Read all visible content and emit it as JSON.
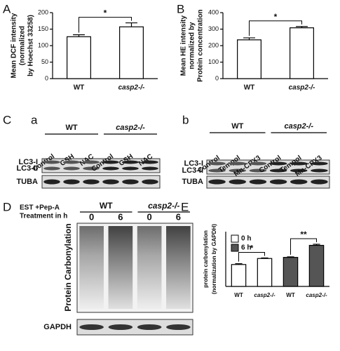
{
  "panel_labels": [
    "A",
    "B",
    "C",
    "a",
    "b",
    "D",
    "E"
  ],
  "chart_data": [
    {
      "type": "bar",
      "ylabel": [
        "Mean DCF intensity",
        "(normalized",
        "by Hoechst 33258)"
      ],
      "categories": [
        "WT",
        "casp2-/-"
      ],
      "values": [
        127,
        157
      ],
      "errors": [
        6,
        12
      ],
      "color": "#ffffff",
      "ylim": [
        0,
        200
      ],
      "yticks": [
        0,
        50,
        100,
        150,
        200
      ],
      "significance": [
        "*"
      ]
    },
    {
      "type": "bar",
      "ylabel": [
        "Mean HE intensity",
        "normalized by",
        "Protein concentration"
      ],
      "categories": [
        "WT",
        "casp2-/-"
      ],
      "values": [
        235,
        308
      ],
      "errors": [
        12,
        8
      ],
      "color": "#ffffff",
      "ylim": [
        0,
        400
      ],
      "yticks": [
        0,
        100,
        200,
        300,
        400
      ],
      "significance": [
        "*"
      ]
    },
    {
      "type": "bar",
      "ylabel": [
        "protein carbonylation",
        "(normalization by GAPDH)"
      ],
      "categories": [
        "WT",
        "casp2-/-",
        "WT",
        "casp2-/-"
      ],
      "series": [
        {
          "name": "0 h",
          "color": "#ffffff",
          "values": [
            40,
            51,
            null,
            null
          ],
          "errors": [
            1.5,
            1,
            null,
            null
          ]
        },
        {
          "name": "6 h",
          "color": "#555555",
          "values": [
            null,
            null,
            53,
            75
          ],
          "errors": [
            null,
            null,
            1,
            2
          ]
        }
      ],
      "ylim": [
        0,
        100
      ],
      "significance": [
        "*",
        "**"
      ]
    }
  ],
  "blot_c_a": {
    "groups": [
      "WT",
      "casp2-/-"
    ],
    "lanes": [
      "Control",
      "GSH",
      "NAC",
      "Control",
      "GSH",
      "NAC"
    ],
    "bands": [
      "LC3-I",
      "LC3-II",
      "TUBA"
    ]
  },
  "blot_c_b": {
    "groups": [
      "WT",
      "casp2-/-"
    ],
    "lanes": [
      "Control",
      "Tempol",
      "Mn-CPX3",
      "Control",
      "Tempol",
      "Mn-CPX3"
    ],
    "bands": [
      "LC3-I",
      "LC3-II",
      "TUBA"
    ]
  },
  "blot_d": {
    "treatment": "EST +Pep-A",
    "time_label": "Treatment in h",
    "groups": [
      "WT",
      "casp2-/-"
    ],
    "lanes": [
      "0",
      "6",
      "0",
      "6"
    ],
    "ylabel": "Protein Carbonylation",
    "loading": "GAPDH"
  }
}
